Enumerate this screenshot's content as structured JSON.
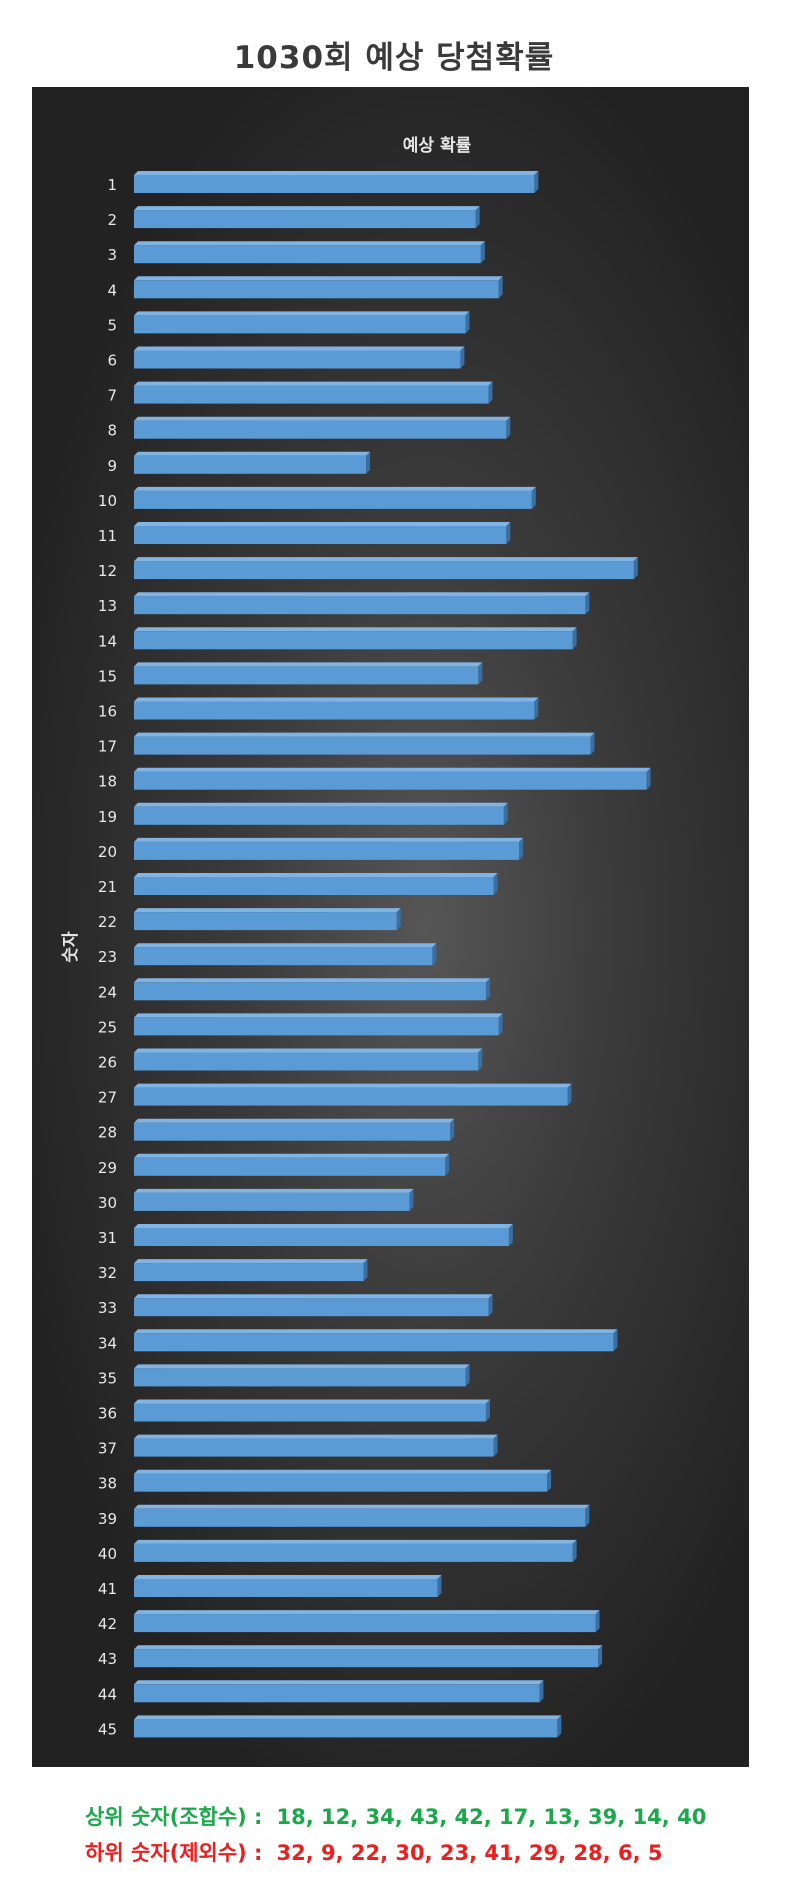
{
  "page": {
    "title": "1030회 예상 당첨확률"
  },
  "chart_data": {
    "type": "bar",
    "orientation": "horizontal",
    "style": "3d",
    "title": "예상 확률",
    "xlabel": "",
    "ylabel": "숫자",
    "xlim": [
      0,
      100
    ],
    "grid": false,
    "legend": "none",
    "categories": [
      "1",
      "2",
      "3",
      "4",
      "5",
      "6",
      "7",
      "8",
      "9",
      "10",
      "11",
      "12",
      "13",
      "14",
      "15",
      "16",
      "17",
      "18",
      "19",
      "20",
      "21",
      "22",
      "23",
      "24",
      "25",
      "26",
      "27",
      "28",
      "29",
      "30",
      "31",
      "32",
      "33",
      "34",
      "35",
      "36",
      "37",
      "38",
      "39",
      "40",
      "41",
      "42",
      "43",
      "44",
      "45"
    ],
    "series": [
      {
        "values": [
          78.5,
          67,
          68,
          71.5,
          65,
          64,
          69.5,
          73,
          45.5,
          78,
          73,
          98,
          88.5,
          86,
          67.5,
          78.5,
          89.5,
          100.5,
          72.5,
          75.5,
          70.5,
          51.5,
          58.5,
          69,
          71.5,
          67.5,
          85,
          62,
          61,
          54,
          73.5,
          45,
          69.5,
          94,
          65,
          69,
          70.5,
          81,
          88.5,
          86,
          59.5,
          90.5,
          91,
          79.5,
          83
        ]
      }
    ],
    "colors": {
      "bar_front": "#5b9bd5",
      "bar_top": "#82b4e3",
      "bar_side": "#3b6fa1",
      "background": "#2f2f2f"
    }
  },
  "summary": {
    "top_label": "상위 숫자(조합수) :",
    "top_numbers": "18, 12, 34, 43, 42, 17, 13, 39, 14, 40",
    "bottom_label": "하위 숫자(제외수) :",
    "bottom_numbers": "32, 9, 22, 30, 23, 41, 29, 28, 6, 5"
  }
}
